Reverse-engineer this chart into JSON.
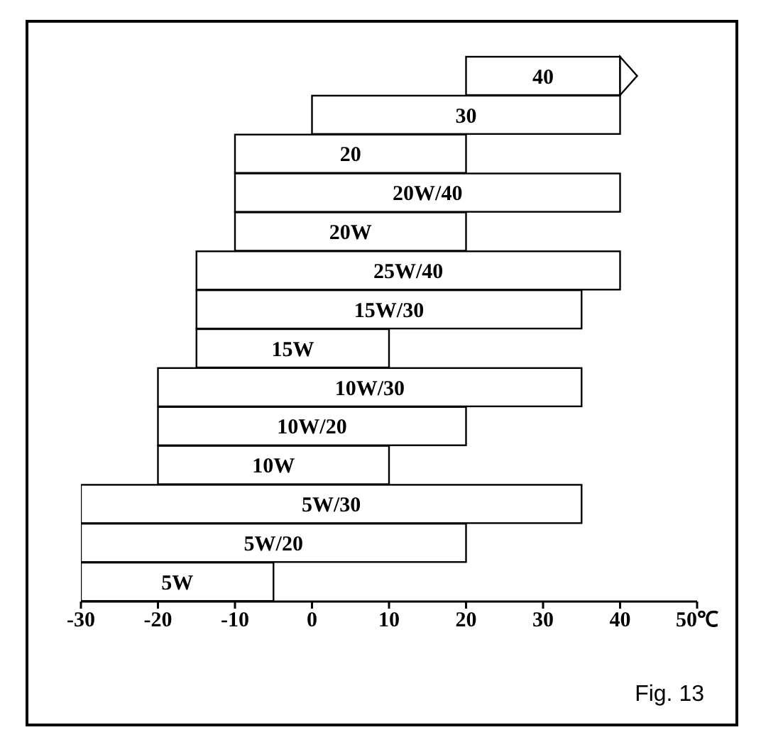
{
  "chart_data": {
    "type": "bar",
    "orientation": "horizontal",
    "categories": [
      "40",
      "30",
      "20",
      "20W/40",
      "20W",
      "25W/40",
      "15W/30",
      "15W",
      "10W/30",
      "10W/20",
      "10W",
      "5W/30",
      "5W/20",
      "5W"
    ],
    "base": [
      20,
      0,
      -10,
      -10,
      -10,
      -15,
      -15,
      -15,
      -20,
      -20,
      -20,
      -30,
      -30,
      -30
    ],
    "values": [
      20,
      40,
      30,
      50,
      30,
      55,
      50,
      25,
      55,
      40,
      30,
      65,
      50,
      25
    ],
    "color": "#ffffff",
    "xlim": [
      -30,
      50
    ],
    "xticks": [
      -30,
      -20,
      -10,
      0,
      10,
      20,
      30,
      40,
      {
        "value": 50,
        "label": "50℃"
      }
    ],
    "annotations": [
      "Fig. 13"
    ]
  }
}
